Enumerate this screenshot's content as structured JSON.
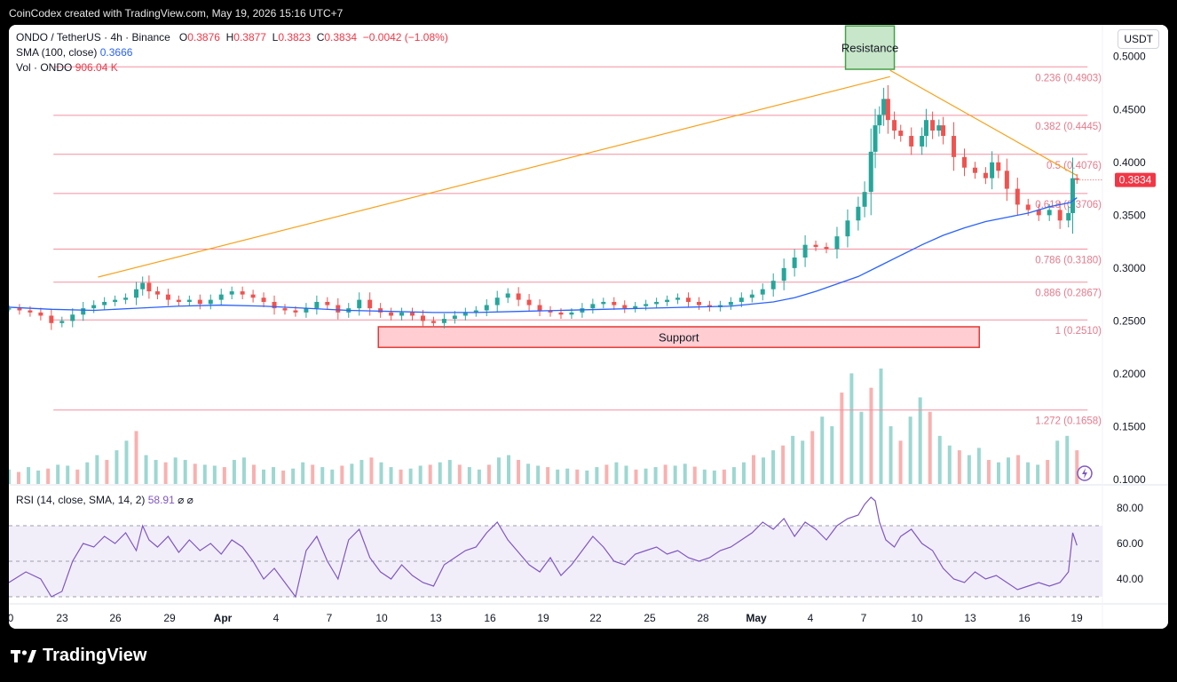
{
  "header": {
    "attribution": "CoinCodex created with TradingView.com, May 19, 2026 15:16 UTC+7"
  },
  "legend": {
    "symbol": "ONDO / TetherUS · 4h · Binance",
    "o_label": "O",
    "o_value": "0.3876",
    "h_label": "H",
    "h_value": "0.3877",
    "l_label": "L",
    "l_value": "0.3823",
    "c_label": "C",
    "c_value": "0.3834",
    "change": "−0.0042 (−1.08%)",
    "sma_label": "SMA (100, close)",
    "sma_value": "0.3666",
    "vol_label": "Vol · ONDO",
    "vol_value": "906.04 K"
  },
  "rsi_legend": {
    "label": "RSI (14, close, SMA, 14, 2)",
    "value": "58.91",
    "icons": "⌀ ⌀"
  },
  "currency": "USDT",
  "footer": {
    "brand": "TradingView"
  },
  "colors": {
    "up": "#26a69a",
    "down": "#ef5350",
    "sma": "#2962ff",
    "fib": "#f48fa0",
    "trend": "#f7a21b",
    "rsi": "#7e57c2",
    "resistance_fill": "#c8e6c9",
    "support_fill": "#ffcdd2"
  },
  "chart_data": {
    "type": "candlestick",
    "ylim": [
      0.095,
      0.53
    ],
    "y_ticks": [
      "0.5000",
      "0.4500",
      "0.4000",
      "0.3500",
      "0.3000",
      "0.2500",
      "0.2000",
      "0.1500",
      "0.1000"
    ],
    "y_tick_values": [
      0.5,
      0.45,
      0.4,
      0.35,
      0.3,
      0.25,
      0.2,
      0.15,
      0.1
    ],
    "x_ticks": [
      "0",
      "23",
      "26",
      "29",
      "Apr",
      "4",
      "7",
      "10",
      "13",
      "16",
      "19",
      "22",
      "25",
      "28",
      "May",
      "4",
      "7",
      "10",
      "13",
      "16",
      "19"
    ],
    "last_price": "0.3834",
    "last_price_value": 0.3834,
    "fib_levels": [
      {
        "label": "0.236 (0.4903)",
        "value": 0.4903
      },
      {
        "label": "0.382 (0.4445)",
        "value": 0.4445
      },
      {
        "label": "0.5 (0.4076)",
        "value": 0.4076
      },
      {
        "label": "0.618 (0.3706)",
        "value": 0.3706
      },
      {
        "label": "0.786 (0.3180)",
        "value": 0.318
      },
      {
        "label": "0.886 (0.2867)",
        "value": 0.2867
      },
      {
        "label": "1 (0.2510)",
        "value": 0.251
      },
      {
        "label": "1.272 (0.1658)",
        "value": 0.1658
      }
    ],
    "zones": [
      {
        "label": "Resistance",
        "top": 0.529,
        "bottom": 0.488,
        "x_start": 39.4,
        "x_end": 41.7
      },
      {
        "label": "Support",
        "top": 0.2445,
        "bottom": 0.225,
        "x_start": 17.4,
        "x_end": 45.7
      }
    ],
    "trendlines": [
      {
        "x1": 4.2,
        "y1": 0.2915,
        "x2": 41.5,
        "y2": 0.481
      },
      {
        "x1": 41.5,
        "y1": 0.487,
        "x2": 50.3,
        "y2": 0.3875
      }
    ],
    "close_series": [
      [
        0,
        0.262
      ],
      [
        0.5,
        0.26
      ],
      [
        1,
        0.258
      ],
      [
        1.5,
        0.255
      ],
      [
        2,
        0.248
      ],
      [
        2.5,
        0.25
      ],
      [
        3,
        0.256
      ],
      [
        3.5,
        0.262
      ],
      [
        4,
        0.265
      ],
      [
        4.5,
        0.268
      ],
      [
        5,
        0.27
      ],
      [
        5.5,
        0.272
      ],
      [
        6,
        0.28
      ],
      [
        6.3,
        0.286
      ],
      [
        6.6,
        0.278
      ],
      [
        7,
        0.275
      ],
      [
        7.5,
        0.27
      ],
      [
        8,
        0.268
      ],
      [
        8.5,
        0.27
      ],
      [
        9,
        0.266
      ],
      [
        9.5,
        0.27
      ],
      [
        10,
        0.275
      ],
      [
        10.5,
        0.278
      ],
      [
        11,
        0.275
      ],
      [
        11.5,
        0.272
      ],
      [
        12,
        0.268
      ],
      [
        12.5,
        0.262
      ],
      [
        13,
        0.26
      ],
      [
        13.5,
        0.258
      ],
      [
        14,
        0.262
      ],
      [
        14.5,
        0.268
      ],
      [
        15,
        0.265
      ],
      [
        15.5,
        0.258
      ],
      [
        16,
        0.262
      ],
      [
        16.5,
        0.27
      ],
      [
        17,
        0.262
      ],
      [
        17.5,
        0.258
      ],
      [
        18,
        0.255
      ],
      [
        18.5,
        0.258
      ],
      [
        19,
        0.255
      ],
      [
        19.5,
        0.25
      ],
      [
        20,
        0.248
      ],
      [
        20.5,
        0.252
      ],
      [
        21,
        0.255
      ],
      [
        21.5,
        0.258
      ],
      [
        22,
        0.26
      ],
      [
        22.5,
        0.265
      ],
      [
        23,
        0.272
      ],
      [
        23.5,
        0.276
      ],
      [
        24,
        0.27
      ],
      [
        24.5,
        0.265
      ],
      [
        25,
        0.26
      ],
      [
        25.5,
        0.258
      ],
      [
        26,
        0.256
      ],
      [
        26.5,
        0.258
      ],
      [
        27,
        0.262
      ],
      [
        27.5,
        0.266
      ],
      [
        28,
        0.268
      ],
      [
        28.5,
        0.265
      ],
      [
        29,
        0.262
      ],
      [
        29.5,
        0.264
      ],
      [
        30,
        0.266
      ],
      [
        30.5,
        0.268
      ],
      [
        31,
        0.27
      ],
      [
        31.5,
        0.272
      ],
      [
        32,
        0.268
      ],
      [
        32.5,
        0.265
      ],
      [
        33,
        0.263
      ],
      [
        33.5,
        0.265
      ],
      [
        34,
        0.268
      ],
      [
        34.5,
        0.272
      ],
      [
        35,
        0.275
      ],
      [
        35.5,
        0.28
      ],
      [
        36,
        0.288
      ],
      [
        36.5,
        0.3
      ],
      [
        37,
        0.31
      ],
      [
        37.5,
        0.322
      ],
      [
        38,
        0.32
      ],
      [
        38.5,
        0.318
      ],
      [
        39,
        0.33
      ],
      [
        39.5,
        0.345
      ],
      [
        40,
        0.358
      ],
      [
        40.3,
        0.372
      ],
      [
        40.6,
        0.41
      ],
      [
        40.8,
        0.435
      ],
      [
        41,
        0.445
      ],
      [
        41.2,
        0.46
      ],
      [
        41.4,
        0.44
      ],
      [
        41.7,
        0.43
      ],
      [
        42,
        0.425
      ],
      [
        42.5,
        0.415
      ],
      [
        43,
        0.425
      ],
      [
        43.2,
        0.44
      ],
      [
        43.5,
        0.43
      ],
      [
        43.8,
        0.435
      ],
      [
        44,
        0.425
      ],
      [
        44.5,
        0.405
      ],
      [
        45,
        0.395
      ],
      [
        45.5,
        0.39
      ],
      [
        46,
        0.385
      ],
      [
        46.3,
        0.4
      ],
      [
        46.6,
        0.392
      ],
      [
        47,
        0.375
      ],
      [
        47.5,
        0.36
      ],
      [
        48,
        0.355
      ],
      [
        48.5,
        0.35
      ],
      [
        49,
        0.355
      ],
      [
        49.5,
        0.345
      ],
      [
        49.9,
        0.352
      ],
      [
        50.1,
        0.385
      ],
      [
        50.3,
        0.3834
      ]
    ],
    "sma_series": [
      [
        0,
        0.263
      ],
      [
        2,
        0.261
      ],
      [
        4,
        0.26
      ],
      [
        6,
        0.262
      ],
      [
        8,
        0.264
      ],
      [
        10,
        0.265
      ],
      [
        12,
        0.264
      ],
      [
        14,
        0.262
      ],
      [
        16,
        0.26
      ],
      [
        18,
        0.259
      ],
      [
        20,
        0.258
      ],
      [
        22,
        0.258
      ],
      [
        24,
        0.259
      ],
      [
        26,
        0.26
      ],
      [
        28,
        0.261
      ],
      [
        30,
        0.262
      ],
      [
        32,
        0.263
      ],
      [
        34,
        0.264
      ],
      [
        35,
        0.266
      ],
      [
        36,
        0.268
      ],
      [
        37,
        0.272
      ],
      [
        38,
        0.278
      ],
      [
        39,
        0.285
      ],
      [
        40,
        0.292
      ],
      [
        41,
        0.302
      ],
      [
        42,
        0.312
      ],
      [
        43,
        0.322
      ],
      [
        44,
        0.331
      ],
      [
        45,
        0.338
      ],
      [
        46,
        0.344
      ],
      [
        47,
        0.348
      ],
      [
        48,
        0.352
      ],
      [
        49,
        0.358
      ],
      [
        50,
        0.362
      ],
      [
        50.3,
        0.3666
      ]
    ],
    "rsi": {
      "ticks": [
        "80.00",
        "60.00",
        "40.00"
      ],
      "tick_values": [
        80,
        60,
        40
      ],
      "ylim": [
        26,
        92
      ],
      "band": [
        70,
        30
      ],
      "mid": 50,
      "series": [
        [
          0,
          38
        ],
        [
          0.8,
          44
        ],
        [
          1.5,
          40
        ],
        [
          2,
          30
        ],
        [
          2.5,
          33
        ],
        [
          3,
          50
        ],
        [
          3.5,
          60
        ],
        [
          4,
          58
        ],
        [
          4.5,
          64
        ],
        [
          5,
          60
        ],
        [
          5.5,
          66
        ],
        [
          6,
          56
        ],
        [
          6.3,
          70
        ],
        [
          6.6,
          62
        ],
        [
          7,
          58
        ],
        [
          7.5,
          64
        ],
        [
          8,
          55
        ],
        [
          8.5,
          62
        ],
        [
          9,
          56
        ],
        [
          9.5,
          60
        ],
        [
          10,
          54
        ],
        [
          10.5,
          62
        ],
        [
          11,
          58
        ],
        [
          11.5,
          50
        ],
        [
          12,
          40
        ],
        [
          12.5,
          46
        ],
        [
          13,
          38
        ],
        [
          13.5,
          30
        ],
        [
          14,
          56
        ],
        [
          14.5,
          64
        ],
        [
          15,
          50
        ],
        [
          15.5,
          40
        ],
        [
          16,
          62
        ],
        [
          16.5,
          68
        ],
        [
          17,
          52
        ],
        [
          17.5,
          44
        ],
        [
          18,
          40
        ],
        [
          18.5,
          48
        ],
        [
          19,
          42
        ],
        [
          19.5,
          38
        ],
        [
          20,
          36
        ],
        [
          20.5,
          48
        ],
        [
          21,
          52
        ],
        [
          21.5,
          56
        ],
        [
          22,
          58
        ],
        [
          22.5,
          66
        ],
        [
          23,
          72
        ],
        [
          23.5,
          62
        ],
        [
          24,
          55
        ],
        [
          24.5,
          48
        ],
        [
          25,
          44
        ],
        [
          25.5,
          52
        ],
        [
          26,
          42
        ],
        [
          26.5,
          48
        ],
        [
          27,
          56
        ],
        [
          27.5,
          64
        ],
        [
          28,
          58
        ],
        [
          28.5,
          50
        ],
        [
          29,
          48
        ],
        [
          29.5,
          54
        ],
        [
          30,
          56
        ],
        [
          30.5,
          58
        ],
        [
          31,
          54
        ],
        [
          31.5,
          56
        ],
        [
          32,
          52
        ],
        [
          32.5,
          50
        ],
        [
          33,
          52
        ],
        [
          33.5,
          56
        ],
        [
          34,
          58
        ],
        [
          34.5,
          62
        ],
        [
          35,
          66
        ],
        [
          35.5,
          72
        ],
        [
          36,
          68
        ],
        [
          36.5,
          74
        ],
        [
          37,
          64
        ],
        [
          37.5,
          72
        ],
        [
          38,
          68
        ],
        [
          38.5,
          62
        ],
        [
          39,
          70
        ],
        [
          39.5,
          74
        ],
        [
          40,
          76
        ],
        [
          40.3,
          82
        ],
        [
          40.6,
          86
        ],
        [
          40.8,
          84
        ],
        [
          41,
          72
        ],
        [
          41.3,
          62
        ],
        [
          41.7,
          58
        ],
        [
          42,
          64
        ],
        [
          42.5,
          68
        ],
        [
          43,
          60
        ],
        [
          43.5,
          56
        ],
        [
          44,
          46
        ],
        [
          44.5,
          40
        ],
        [
          45,
          38
        ],
        [
          45.5,
          44
        ],
        [
          46,
          40
        ],
        [
          46.5,
          42
        ],
        [
          47,
          38
        ],
        [
          47.5,
          34
        ],
        [
          48,
          36
        ],
        [
          48.5,
          38
        ],
        [
          49,
          36
        ],
        [
          49.5,
          38
        ],
        [
          49.9,
          44
        ],
        [
          50.1,
          66
        ],
        [
          50.3,
          58.91
        ]
      ]
    },
    "volume": {
      "max_value": 2.4,
      "values": [
        0.3,
        0.25,
        0.35,
        0.28,
        0.32,
        0.4,
        0.38,
        0.3,
        0.45,
        0.6,
        0.5,
        0.7,
        0.9,
        1.1,
        0.6,
        0.5,
        0.45,
        0.55,
        0.5,
        0.42,
        0.4,
        0.38,
        0.35,
        0.5,
        0.55,
        0.4,
        0.3,
        0.35,
        0.28,
        0.32,
        0.45,
        0.4,
        0.35,
        0.3,
        0.38,
        0.42,
        0.5,
        0.55,
        0.45,
        0.35,
        0.3,
        0.32,
        0.38,
        0.4,
        0.45,
        0.5,
        0.4,
        0.35,
        0.3,
        0.4,
        0.55,
        0.6,
        0.5,
        0.42,
        0.38,
        0.35,
        0.3,
        0.32,
        0.3,
        0.28,
        0.35,
        0.4,
        0.45,
        0.38,
        0.3,
        0.32,
        0.35,
        0.4,
        0.38,
        0.42,
        0.36,
        0.3,
        0.28,
        0.3,
        0.35,
        0.45,
        0.6,
        0.55,
        0.7,
        0.8,
        1.0,
        0.9,
        1.1,
        1.4,
        1.2,
        1.9,
        2.3,
        1.5,
        2.0,
        2.4,
        1.2,
        0.9,
        1.4,
        1.8,
        1.5,
        1.0,
        0.8,
        0.7,
        0.6,
        0.75,
        0.5,
        0.45,
        0.55,
        0.6,
        0.45,
        0.4,
        0.5,
        0.9,
        1.0,
        0.7
      ]
    }
  }
}
